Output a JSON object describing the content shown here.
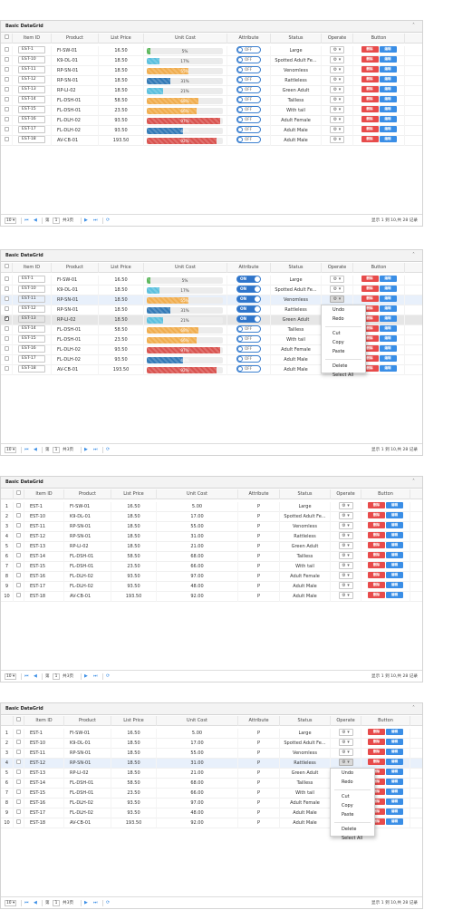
{
  "panel_title": "Basic DataGrid",
  "collapse_glyph": "˄",
  "columns": {
    "item_id": "Item ID",
    "product": "Product",
    "list_price": "List Price",
    "unit_cost": "Unit Cost",
    "attribute": "Attribute",
    "status": "Status",
    "operate": "Operate",
    "button": "Button"
  },
  "rows": [
    {
      "num": "1",
      "id": "EST-1",
      "product": "FI-SW-01",
      "price": "16.50",
      "cost": "5.00",
      "cost_pct_label": "5%",
      "cost_pct": 5,
      "cost_color": "#5cb85c",
      "attr": "P",
      "status": "Large"
    },
    {
      "num": "2",
      "id": "EST-10",
      "product": "K9-DL-01",
      "price": "18.50",
      "cost": "17.00",
      "cost_pct_label": "17%",
      "cost_pct": 17,
      "cost_color": "#5bc0de",
      "attr": "P",
      "status": "Spotted Adult Fe..."
    },
    {
      "num": "3",
      "id": "EST-11",
      "product": "RP-SN-01",
      "price": "18.50",
      "cost": "55.00",
      "cost_pct_label": "55%",
      "cost_pct": 55,
      "cost_color": "#f0ad4e",
      "attr": "P",
      "status": "Venomless"
    },
    {
      "num": "4",
      "id": "EST-12",
      "product": "RP-SN-01",
      "price": "18.50",
      "cost": "31.00",
      "cost_pct_label": "31%",
      "cost_pct": 31,
      "cost_color": "#337ab7",
      "attr": "P",
      "status": "Rattleless"
    },
    {
      "num": "5",
      "id": "EST-13",
      "product": "RP-LI-02",
      "price": "18.50",
      "cost": "21.00",
      "cost_pct_label": "21%",
      "cost_pct": 21,
      "cost_color": "#5bc0de",
      "attr": "P",
      "status": "Green Adult"
    },
    {
      "num": "6",
      "id": "EST-14",
      "product": "FL-DSH-01",
      "price": "58.50",
      "cost": "68.00",
      "cost_pct_label": "68%",
      "cost_pct": 68,
      "cost_color": "#f0ad4e",
      "attr": "P",
      "status": "Tailless"
    },
    {
      "num": "7",
      "id": "EST-15",
      "product": "FL-DSH-01",
      "price": "23.50",
      "cost": "66.00",
      "cost_pct_label": "66%",
      "cost_pct": 66,
      "cost_color": "#f0ad4e",
      "attr": "P",
      "status": "With tail"
    },
    {
      "num": "8",
      "id": "EST-16",
      "product": "FL-DLH-02",
      "price": "93.50",
      "cost": "97.00",
      "cost_pct_label": "97%",
      "cost_pct": 97,
      "cost_color": "#d9534f",
      "attr": "P",
      "status": "Adult Female"
    },
    {
      "num": "9",
      "id": "EST-17",
      "product": "FL-DLH-02",
      "price": "93.50",
      "cost": "48.00",
      "cost_pct_label": "48%",
      "cost_pct": 48,
      "cost_color": "#337ab7",
      "attr": "P",
      "status": "Adult Male"
    },
    {
      "num": "10",
      "id": "EST-18",
      "product": "AV-CB-01",
      "price": "193.50",
      "cost": "92.00",
      "cost_pct_label": "92%",
      "cost_pct": 92,
      "cost_color": "#d9534f",
      "attr": "P",
      "status": "Adult Male"
    }
  ],
  "switch": {
    "off_label": "OFF",
    "on_label": "ON"
  },
  "buttons": {
    "delete_label": "删除",
    "edit_label": "编辑"
  },
  "operate_glyph": "⚙ ▾",
  "context_menu": {
    "items": [
      "Undo",
      "Redo",
      "Cut",
      "Copy",
      "Paste",
      "Delete",
      "Select All"
    ]
  },
  "pager": {
    "page_size": "10 ▾",
    "first_glyph": "⏮",
    "prev_glyph": "◀",
    "page_label": "第",
    "page_value": "1",
    "total_label": "共3页",
    "next_glyph": "▶",
    "last_glyph": "⏭",
    "refresh_glyph": "⟳",
    "info": "显示 1 到 10,共 28 记录"
  },
  "panels": [
    {
      "variant": "progress",
      "switch_on_rows": [],
      "selected_row": null,
      "checked_row": null,
      "menu_row": null
    },
    {
      "variant": "progress",
      "switch_on_rows": [
        0,
        1,
        2,
        3,
        4
      ],
      "selected_row": 2,
      "checked_row": 4,
      "menu_row": 2
    },
    {
      "variant": "plain",
      "switch_on_rows": [],
      "selected_row": null,
      "checked_row": null,
      "menu_row": null
    },
    {
      "variant": "plain",
      "switch_on_rows": [],
      "selected_row": 3,
      "checked_row": null,
      "menu_row": 3
    }
  ],
  "colors": {
    "accent": "#3a8ee6",
    "delete": "#e74b4b",
    "header_bg": "#f3f3f3"
  }
}
